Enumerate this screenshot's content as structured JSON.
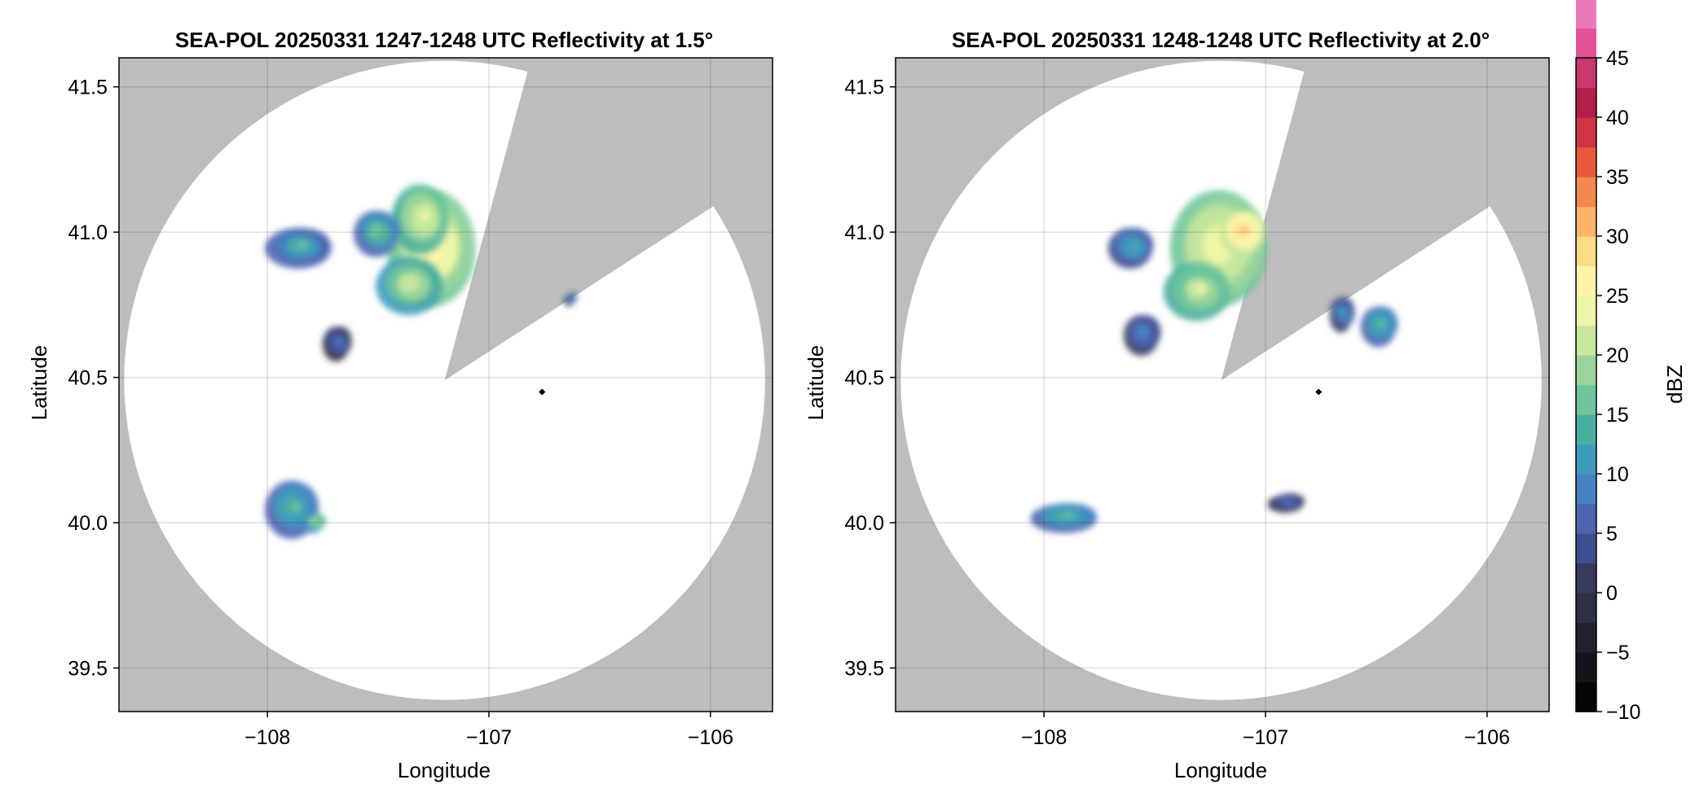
{
  "chart_data": [
    {
      "type": "heatmap",
      "title": "SEA-POL 20250331 1247-1248 UTC Reflectivity at 1.5°",
      "xlabel": "Longitude",
      "ylabel": "Latitude",
      "xlim": [
        -108.67,
        -105.72
      ],
      "ylim": [
        39.35,
        41.6
      ],
      "xticks": [
        -108,
        -107,
        -106
      ],
      "xtick_labels": [
        "−108",
        "−107",
        "−106"
      ],
      "yticks": [
        39.5,
        40.0,
        40.5,
        41.0,
        41.5
      ],
      "ytick_labels": [
        "39.5",
        "40.0",
        "40.5",
        "41.0",
        "41.5"
      ],
      "grid": true,
      "background_color": "#bdbdbd",
      "coverage_color": "#ffffff",
      "radar_site": {
        "lon": -107.2,
        "lat": 40.49
      },
      "coverage_radius_lat_deg": 1.1,
      "blocked_sectors_deg_from_north": [
        [
          15,
          57
        ]
      ],
      "marker": {
        "lon": -106.76,
        "lat": 40.45
      },
      "echoes": [
        {
          "lon": -107.25,
          "lat": 40.95,
          "rlon": 0.2,
          "rlat": 0.2,
          "dbz": 27
        },
        {
          "lon": -107.3,
          "lat": 41.05,
          "rlon": 0.13,
          "rlat": 0.12,
          "dbz": 24
        },
        {
          "lon": -107.35,
          "lat": 40.82,
          "rlon": 0.15,
          "rlat": 0.1,
          "dbz": 22
        },
        {
          "lon": -107.5,
          "lat": 41.0,
          "rlon": 0.1,
          "rlat": 0.08,
          "dbz": 17
        },
        {
          "lon": -107.85,
          "lat": 40.95,
          "rlon": 0.15,
          "rlat": 0.07,
          "dbz": 15
        },
        {
          "lon": -107.68,
          "lat": 40.62,
          "rlon": 0.06,
          "rlat": 0.06,
          "dbz": 9
        },
        {
          "lon": -107.88,
          "lat": 40.05,
          "rlon": 0.12,
          "rlat": 0.1,
          "dbz": 16
        },
        {
          "lon": -107.78,
          "lat": 40.0,
          "rlon": 0.04,
          "rlat": 0.03,
          "dbz": 21
        },
        {
          "lon": -106.63,
          "lat": 40.77,
          "rlon": 0.02,
          "rlat": 0.02,
          "dbz": 12
        }
      ]
    },
    {
      "type": "heatmap",
      "title": "SEA-POL 20250331 1248-1248 UTC Reflectivity at 2.0°",
      "xlabel": "Longitude",
      "ylabel": "Latitude",
      "xlim": [
        -108.67,
        -105.72
      ],
      "ylim": [
        39.35,
        41.6
      ],
      "xticks": [
        -108,
        -107,
        -106
      ],
      "xtick_labels": [
        "−108",
        "−107",
        "−106"
      ],
      "yticks": [
        39.5,
        40.0,
        40.5,
        41.0,
        41.5
      ],
      "ytick_labels": [
        "39.5",
        "40.0",
        "40.5",
        "41.0",
        "41.5"
      ],
      "grid": true,
      "background_color": "#bdbdbd",
      "coverage_color": "#ffffff",
      "radar_site": {
        "lon": -107.2,
        "lat": 40.49
      },
      "coverage_radius_lat_deg": 1.1,
      "blocked_sectors_deg_from_north": [
        [
          15,
          57
        ]
      ],
      "marker": {
        "lon": -106.76,
        "lat": 40.45
      },
      "echoes": [
        {
          "lon": -107.2,
          "lat": 40.95,
          "rlon": 0.22,
          "rlat": 0.2,
          "dbz": 26
        },
        {
          "lon": -107.1,
          "lat": 41.0,
          "rlon": 0.1,
          "rlat": 0.08,
          "dbz": 31
        },
        {
          "lon": -107.3,
          "lat": 40.8,
          "rlon": 0.15,
          "rlat": 0.1,
          "dbz": 23
        },
        {
          "lon": -107.55,
          "lat": 40.65,
          "rlon": 0.08,
          "rlat": 0.07,
          "dbz": 11
        },
        {
          "lon": -107.6,
          "lat": 40.95,
          "rlon": 0.1,
          "rlat": 0.07,
          "dbz": 14
        },
        {
          "lon": -107.9,
          "lat": 40.02,
          "rlon": 0.15,
          "rlat": 0.05,
          "dbz": 16
        },
        {
          "lon": -106.9,
          "lat": 40.07,
          "rlon": 0.08,
          "rlat": 0.03,
          "dbz": 9
        },
        {
          "lon": -106.48,
          "lat": 40.68,
          "rlon": 0.08,
          "rlat": 0.07,
          "dbz": 16
        },
        {
          "lon": -106.65,
          "lat": 40.72,
          "rlon": 0.05,
          "rlat": 0.06,
          "dbz": 12
        }
      ]
    }
  ],
  "colorbar": {
    "label": "dBZ",
    "min": -10,
    "max": 45,
    "step": 2.5,
    "ticks": [
      -10,
      -5,
      0,
      5,
      10,
      15,
      20,
      25,
      30,
      35,
      40,
      45
    ],
    "tick_labels": [
      "−10",
      "−5",
      "0",
      "5",
      "10",
      "15",
      "20",
      "25",
      "30",
      "35",
      "40",
      "45"
    ],
    "colors": [
      "#050505",
      "#14141c",
      "#22222e",
      "#2e2e44",
      "#373a5c",
      "#3e4e90",
      "#4d64b0",
      "#4683c4",
      "#3f9bbc",
      "#4aae9e",
      "#6ec69a",
      "#9ad49c",
      "#c6e79d",
      "#edf6a8",
      "#fef3aa",
      "#fedb86",
      "#fbb36a",
      "#f5884f",
      "#e8593c",
      "#cf3544",
      "#b21f4a",
      "#c8386c",
      "#e15196",
      "#ea78b7",
      "#efa0d2",
      "#cc9ad0",
      "#9d6bb4",
      "#7a3e96",
      "#5a1e6a",
      "#3d0846"
    ]
  }
}
